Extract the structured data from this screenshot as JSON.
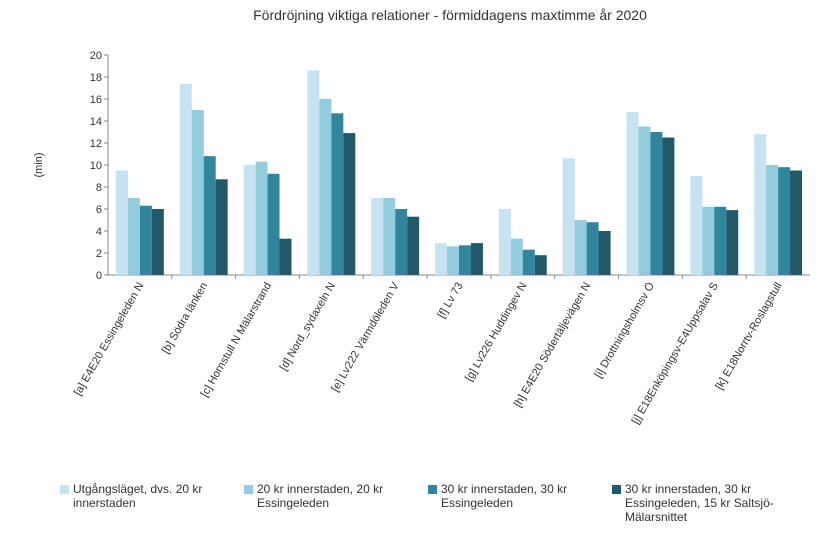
{
  "chart_data": {
    "type": "bar",
    "title": "Fördröjning viktiga relationer - förmiddagens maxtimme år 2020",
    "y_label": "(min)",
    "categories": [
      "[a] E4E20 Essingeleden N",
      "[b] Södra länken",
      "[c] Hornstull N Mälarstrand",
      "[d] Nord_sydaxeln N",
      "[e] Lv222 Värmdöleden V",
      "[f] Lv 73",
      "[g] Lv226 Huddingev N",
      "[h] E4E20 Södertäljevägen N",
      "[i] Drottningsholmsv Ö",
      "[j] E18Enköpingsv-E4Uppsalav S",
      "[k] E18Norrtv-Roslagstull"
    ],
    "series": [
      {
        "name": "Utgångsläget, dvs. 20 kr innerstaden",
        "color": "#c6e4f0",
        "values": [
          9.5,
          17.4,
          10.0,
          18.6,
          7.0,
          2.9,
          6.0,
          10.6,
          14.8,
          9.0,
          12.8
        ]
      },
      {
        "name": "20 kr innerstaden, 20 kr Essingeleden",
        "color": "#93cddd",
        "values": [
          7.0,
          15.0,
          10.3,
          16.0,
          7.0,
          2.6,
          3.3,
          5.0,
          13.5,
          6.2,
          10.0
        ]
      },
      {
        "name": "30 kr innerstaden, 30 kr Essingeleden",
        "color": "#31859c",
        "values": [
          6.3,
          10.8,
          9.2,
          14.7,
          6.0,
          2.7,
          2.3,
          4.8,
          13.0,
          6.2,
          9.8
        ]
      },
      {
        "name": "30 kr innerstaden, 30 kr Essingeleden, 15 kr Saltsjö-Mälarsnittet",
        "color": "#215968",
        "values": [
          6.0,
          8.7,
          3.3,
          12.9,
          5.3,
          2.9,
          1.8,
          4.0,
          12.5,
          5.9,
          9.5
        ]
      }
    ],
    "ylim": [
      0,
      20
    ],
    "yticks": [
      0,
      2,
      4,
      6,
      8,
      10,
      12,
      14,
      16,
      18,
      20
    ],
    "grid": false
  }
}
